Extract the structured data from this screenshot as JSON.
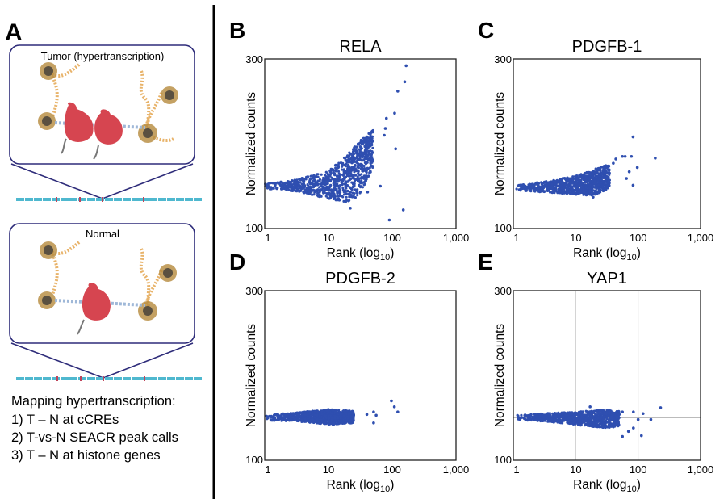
{
  "panel_a": {
    "letter": "A",
    "tumor_label": "Tumor (hypertranscription)",
    "normal_label": "Normal",
    "mapping_title": "Mapping hypertranscription:",
    "mapping_items": [
      "1) T – N at cCREs",
      "2) T-vs-N SEACR peak calls",
      "3) T – N at histone genes"
    ],
    "colors": {
      "polymerase": "#d64550",
      "chromatin": "#e8b36a",
      "dna_track": "#4fb8cf",
      "callout": "#2e2c7a"
    }
  },
  "chart_data": [
    {
      "letter": "B",
      "type": "scatter",
      "title": "RELA",
      "ylabel": "Normalized counts",
      "xlabel_parts": [
        "Rank (log",
        "10",
        ")"
      ],
      "xscale": "log",
      "xlim": [
        1,
        1000
      ],
      "ylim": [
        100,
        300
      ],
      "xticks": [
        "1",
        "10",
        "100",
        "1,000"
      ],
      "yticks": [
        "100",
        "300"
      ],
      "grid": false,
      "color": "#2f4fb0",
      "band_envelope": [
        [
          1,
          147,
          153
        ],
        [
          3,
          144,
          158
        ],
        [
          10,
          135,
          168
        ],
        [
          20,
          131,
          188
        ],
        [
          30,
          139,
          203
        ],
        [
          50,
          171,
          216
        ]
      ],
      "outliers": [
        [
          165,
          292
        ],
        [
          157,
          273
        ],
        [
          122,
          262
        ],
        [
          109,
          236
        ],
        [
          81,
          230
        ],
        [
          78,
          218
        ],
        [
          75,
          210
        ],
        [
          113,
          194
        ],
        [
          65,
          150
        ],
        [
          41,
          143
        ],
        [
          22,
          124
        ],
        [
          90,
          110
        ],
        [
          149,
          122
        ]
      ]
    },
    {
      "letter": "C",
      "type": "scatter",
      "title": "PDGFB-1",
      "ylabel": "Normalized counts",
      "xlabel_parts": [
        "Rank (log",
        "10",
        ")"
      ],
      "xscale": "log",
      "xlim": [
        1,
        1000
      ],
      "ylim": [
        100,
        300
      ],
      "xticks": [
        "1",
        "10",
        "100",
        "1,000"
      ],
      "yticks": [
        "100",
        "300"
      ],
      "grid": false,
      "color": "#2f4fb0",
      "band_envelope": [
        [
          1,
          145,
          151
        ],
        [
          3,
          143,
          155
        ],
        [
          10,
          140,
          162
        ],
        [
          20,
          139,
          170
        ],
        [
          35,
          148,
          176
        ]
      ],
      "outliers": [
        [
          83,
          208
        ],
        [
          188,
          183
        ],
        [
          56,
          185
        ],
        [
          78,
          185
        ],
        [
          62,
          185
        ],
        [
          44,
          182
        ],
        [
          97,
          172
        ],
        [
          72,
          167
        ],
        [
          83,
          151
        ],
        [
          65,
          159
        ],
        [
          19,
          137
        ],
        [
          40,
          177
        ]
      ]
    },
    {
      "letter": "D",
      "type": "scatter",
      "title": "PDGFB-2",
      "ylabel": "Normalized counts",
      "xlabel_parts": [
        "Rank (log",
        "10",
        ")"
      ],
      "xscale": "log",
      "xlim": [
        1,
        1000
      ],
      "ylim": [
        100,
        300
      ],
      "xticks": [
        "1",
        "10",
        "100",
        "1,000"
      ],
      "yticks": [
        "100",
        "300"
      ],
      "grid": false,
      "color": "#2f4fb0",
      "band_envelope": [
        [
          1,
          147,
          153
        ],
        [
          3,
          146,
          156
        ],
        [
          10,
          142,
          160
        ],
        [
          25,
          144,
          158
        ]
      ],
      "outliers": [
        [
          97,
          170
        ],
        [
          108,
          163
        ],
        [
          122,
          157
        ],
        [
          51,
          157
        ],
        [
          56,
          153
        ],
        [
          51,
          144
        ],
        [
          40,
          154
        ]
      ]
    },
    {
      "letter": "E",
      "type": "scatter",
      "title": "YAP1",
      "ylabel": "Normalized counts",
      "xlabel_parts": [
        "Rank (log",
        "10",
        ")"
      ],
      "xscale": "log",
      "xlim": [
        1,
        1000
      ],
      "ylim": [
        100,
        300
      ],
      "xticks": [
        "1",
        "10",
        "100",
        "1,000"
      ],
      "yticks": [
        "100",
        "300"
      ],
      "grid": true,
      "reference_line": 150,
      "color": "#2f4fb0",
      "band_envelope": [
        [
          1,
          148,
          153
        ],
        [
          3,
          146,
          155
        ],
        [
          10,
          142,
          157
        ],
        [
          30,
          138,
          160
        ],
        [
          50,
          140,
          158
        ]
      ],
      "outliers": [
        [
          17,
          163
        ],
        [
          229,
          162
        ],
        [
          56,
          157
        ],
        [
          84,
          157
        ],
        [
          120,
          155
        ],
        [
          100,
          148
        ],
        [
          160,
          148
        ],
        [
          84,
          138
        ],
        [
          56,
          128
        ],
        [
          113,
          129
        ],
        [
          70,
          134
        ]
      ]
    }
  ]
}
